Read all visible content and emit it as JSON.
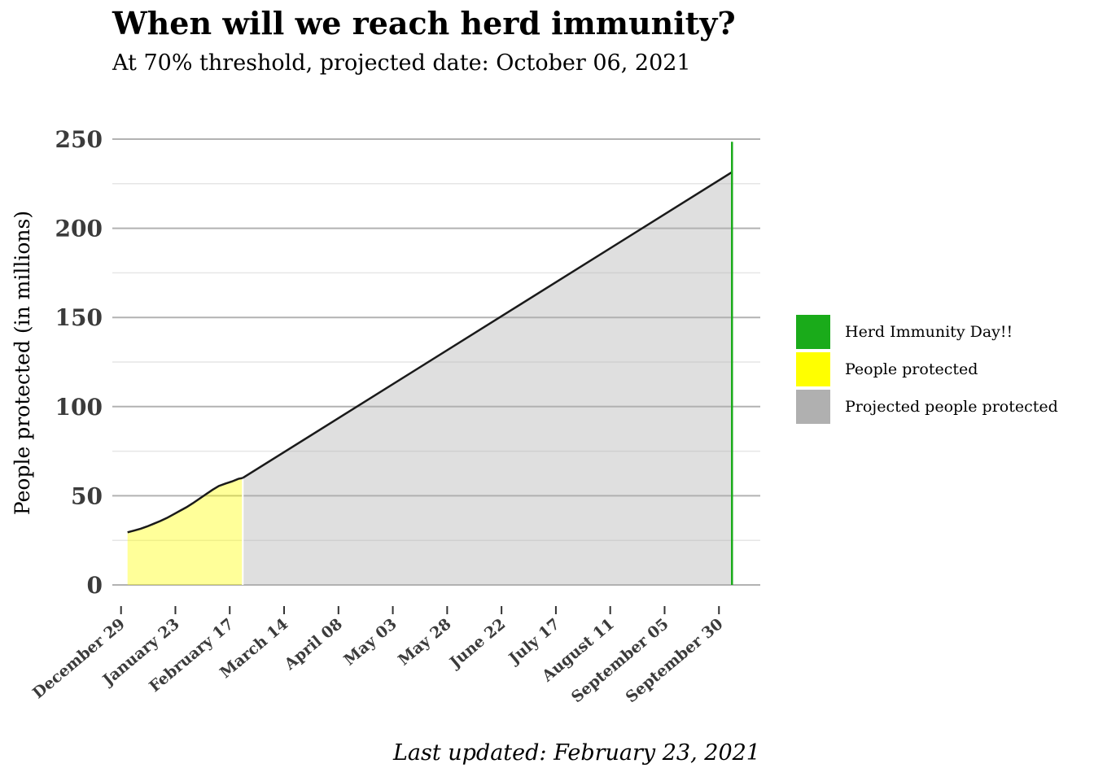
{
  "chart_data": {
    "type": "area",
    "title": "When will we reach herd immunity?",
    "subtitle": "At 70% threshold, projected date: October 06, 2021",
    "caption": "Last updated: February 23, 2021",
    "ylabel": "People protected (in millions)",
    "xlabel": "",
    "ylim": [
      0,
      250
    ],
    "yticks": [
      "0",
      "50",
      "100",
      "150",
      "200",
      "250"
    ],
    "xlim": [
      "2020-12-25",
      "2021-10-19"
    ],
    "xticks": [
      {
        "date": "2020-12-29",
        "label": "December 29"
      },
      {
        "date": "2021-01-23",
        "label": "January 23"
      },
      {
        "date": "2021-02-17",
        "label": "February 17"
      },
      {
        "date": "2021-03-14",
        "label": "March 14"
      },
      {
        "date": "2021-04-08",
        "label": "April 08"
      },
      {
        "date": "2021-05-03",
        "label": "May 03"
      },
      {
        "date": "2021-05-28",
        "label": "May 28"
      },
      {
        "date": "2021-06-22",
        "label": "June 22"
      },
      {
        "date": "2021-07-17",
        "label": "July 17"
      },
      {
        "date": "2021-08-11",
        "label": "August 11"
      },
      {
        "date": "2021-09-05",
        "label": "September 05"
      },
      {
        "date": "2021-09-30",
        "label": "September 30"
      }
    ],
    "grid": true,
    "legend_position": "right",
    "series": [
      {
        "name": "People protected",
        "color": "#ffff00",
        "x": [
          "2021-01-01",
          "2021-01-04",
          "2021-01-07",
          "2021-01-10",
          "2021-01-13",
          "2021-01-16",
          "2021-01-19",
          "2021-01-22",
          "2021-01-25",
          "2021-01-28",
          "2021-01-31",
          "2021-02-03",
          "2021-02-06",
          "2021-02-09",
          "2021-02-12",
          "2021-02-15",
          "2021-02-18",
          "2021-02-21",
          "2021-02-23"
        ],
        "y": [
          29.5,
          30.5,
          31.5,
          32.8,
          34.3,
          35.8,
          37.5,
          39.5,
          41.5,
          43.5,
          45.8,
          48.3,
          50.8,
          53.3,
          55.5,
          56.8,
          58,
          59.5,
          60
        ]
      },
      {
        "name": "Projected people protected",
        "color": "#b0b0b0",
        "x": [
          "2021-02-23",
          "2021-10-06"
        ],
        "y": [
          60,
          231.5
        ]
      },
      {
        "name": "Herd Immunity Day!!",
        "color": "#1aab1a",
        "x": [
          "2021-10-06",
          "2021-10-06"
        ],
        "y": [
          0,
          248.5
        ]
      }
    ]
  }
}
